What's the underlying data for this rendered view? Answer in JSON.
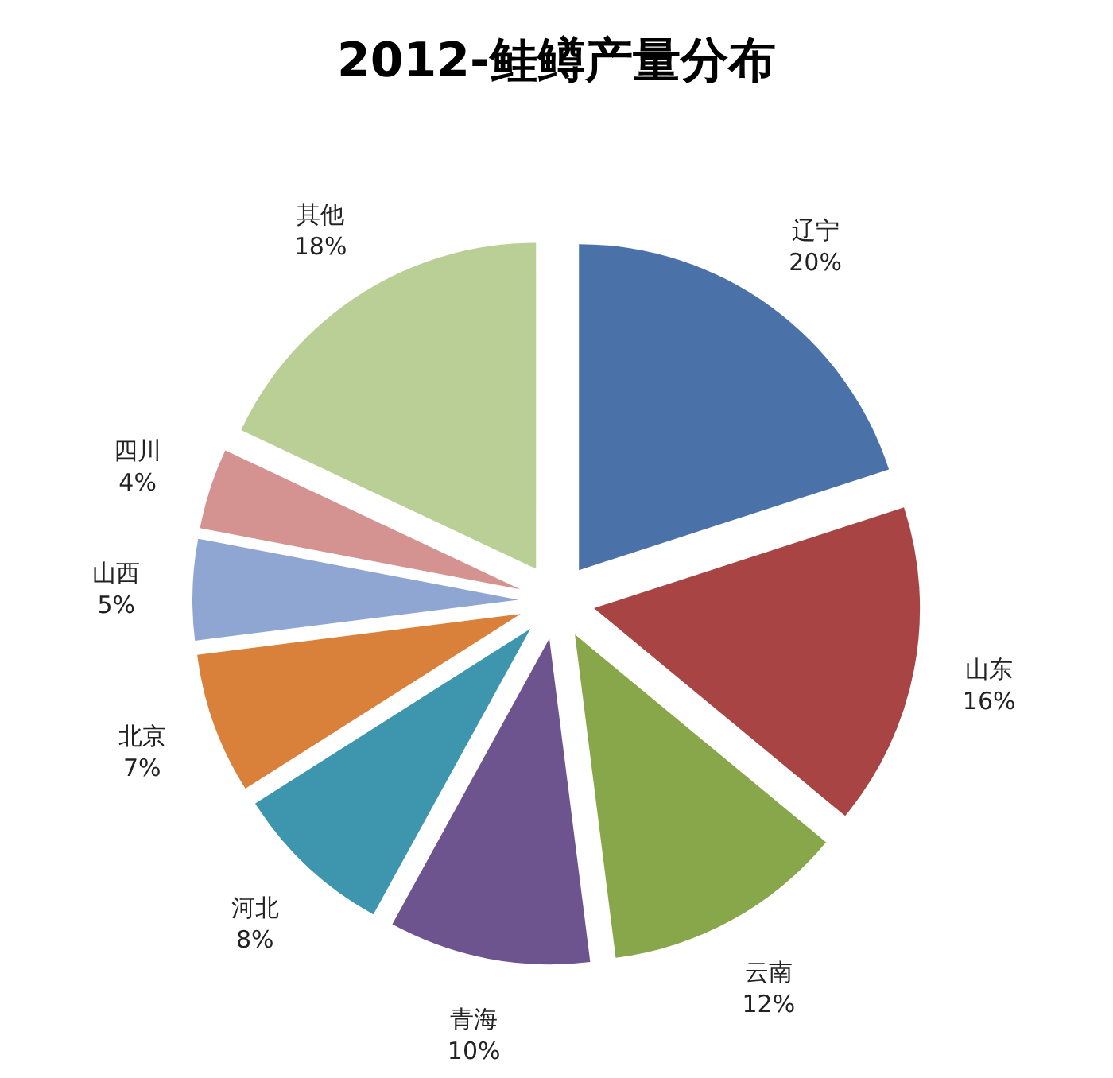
{
  "chart_data": {
    "type": "pie",
    "title": "2012-鲑鳟产量分布",
    "categories": [
      "辽宁",
      "山东",
      "云南",
      "青海",
      "河北",
      "北京",
      "山西",
      "四川",
      "其他"
    ],
    "values": [
      20,
      16,
      12,
      10,
      8,
      7,
      5,
      4,
      18
    ],
    "value_labels": [
      "20%",
      "16%",
      "12%",
      "10%",
      "8%",
      "7%",
      "5%",
      "4%",
      "18%"
    ],
    "colors": [
      "#4a72a8",
      "#a84443",
      "#88a74a",
      "#6e548f",
      "#3d96ad",
      "#d9803b",
      "#8fa6d3",
      "#d49291",
      "#b9cf96"
    ]
  }
}
